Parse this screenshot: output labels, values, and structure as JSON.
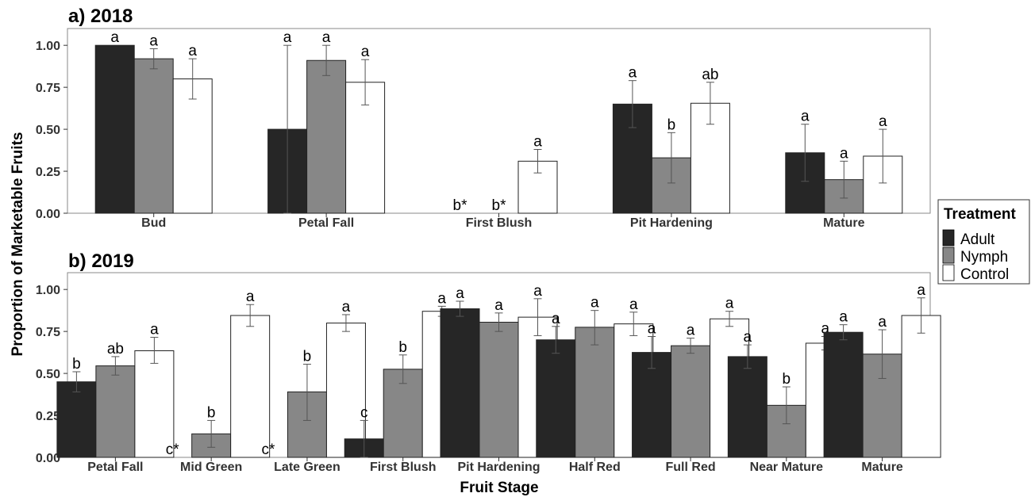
{
  "figure": {
    "ylabel": "Proportion of Marketable Fruits",
    "xlabel": "Fruit Stage",
    "legend": {
      "title": "Treatment",
      "placement": "right",
      "items": [
        {
          "name": "Adult",
          "color": "#262626"
        },
        {
          "name": "Nymph",
          "color": "#878787"
        },
        {
          "name": "Control",
          "color": "#ffffff"
        }
      ]
    }
  },
  "chart_data": [
    {
      "type": "bar",
      "title": "a) 2018",
      "ylim": [
        0,
        1.1
      ],
      "yticks": [
        "0.00",
        "0.25",
        "0.50",
        "0.75",
        "1.00"
      ],
      "ytick_values": [
        0,
        0.25,
        0.5,
        0.75,
        1.0
      ],
      "categories": [
        "Bud",
        "Petal Fall",
        "First Blush",
        "Pit Hardening",
        "Mature"
      ],
      "series": [
        {
          "name": "Adult",
          "color": "#262626",
          "values": [
            1.0,
            0.5,
            null,
            0.65,
            0.36
          ],
          "err_low": [
            1.0,
            0.0,
            null,
            0.51,
            0.19
          ],
          "err_high": [
            1.0,
            1.0,
            null,
            0.79,
            0.53
          ],
          "labels": [
            "a",
            "a",
            "b*",
            "a",
            "a"
          ]
        },
        {
          "name": "Nymph",
          "color": "#878787",
          "values": [
            0.92,
            0.91,
            null,
            0.33,
            0.2
          ],
          "err_low": [
            0.86,
            0.82,
            null,
            0.18,
            0.09
          ],
          "err_high": [
            0.98,
            1.0,
            null,
            0.48,
            0.31
          ],
          "labels": [
            "a",
            "a",
            "b*",
            "b",
            "a"
          ]
        },
        {
          "name": "Control",
          "color": "#ffffff",
          "values": [
            0.8,
            0.78,
            0.31,
            0.655,
            0.34
          ],
          "err_low": [
            0.68,
            0.645,
            0.24,
            0.53,
            0.18
          ],
          "err_high": [
            0.92,
            0.915,
            0.38,
            0.78,
            0.5
          ],
          "labels": [
            "a",
            "a",
            "a",
            "ab",
            "a"
          ]
        }
      ]
    },
    {
      "type": "bar",
      "title": "b) 2019",
      "ylim": [
        0,
        1.1
      ],
      "yticks": [
        "0.00",
        "0.25",
        "0.50",
        "0.75",
        "1.00"
      ],
      "ytick_values": [
        0,
        0.25,
        0.5,
        0.75,
        1.0
      ],
      "categories": [
        "Petal Fall",
        "Mid Green",
        "Late Green",
        "First Blush",
        "Pit Hardening",
        "Half Red",
        "Full Red",
        "Near Mature",
        "Mature"
      ],
      "series": [
        {
          "name": "Adult",
          "color": "#262626",
          "values": [
            0.45,
            null,
            null,
            0.11,
            0.885,
            0.7,
            0.625,
            0.6,
            0.745
          ],
          "err_low": [
            0.39,
            null,
            null,
            0.0,
            0.84,
            0.62,
            0.53,
            0.53,
            0.7
          ],
          "err_high": [
            0.51,
            null,
            null,
            0.22,
            0.93,
            0.78,
            0.72,
            0.67,
            0.79
          ],
          "labels": [
            "b",
            "c*",
            "c*",
            "c",
            "a",
            "a",
            "a",
            "a",
            "a"
          ]
        },
        {
          "name": "Nymph",
          "color": "#878787",
          "values": [
            0.545,
            0.14,
            0.39,
            0.525,
            0.805,
            0.775,
            0.665,
            0.31,
            0.615
          ],
          "err_low": [
            0.49,
            0.06,
            0.22,
            0.44,
            0.75,
            0.67,
            0.62,
            0.2,
            0.47
          ],
          "err_high": [
            0.6,
            0.22,
            0.555,
            0.61,
            0.86,
            0.875,
            0.71,
            0.42,
            0.76
          ],
          "labels": [
            "ab",
            "b",
            "b",
            "b",
            "a",
            "a",
            "a",
            "b",
            "a"
          ]
        },
        {
          "name": "Control",
          "color": "#ffffff",
          "values": [
            0.635,
            0.845,
            0.8,
            0.87,
            0.835,
            0.795,
            0.825,
            0.68,
            0.845
          ],
          "err_low": [
            0.56,
            0.78,
            0.75,
            0.84,
            0.725,
            0.725,
            0.78,
            0.64,
            0.74
          ],
          "err_high": [
            0.715,
            0.91,
            0.85,
            0.9,
            0.945,
            0.865,
            0.87,
            0.72,
            0.95
          ],
          "labels": [
            "a",
            "a",
            "a",
            "a",
            "a",
            "a",
            "a",
            "a",
            "a"
          ]
        }
      ]
    }
  ]
}
